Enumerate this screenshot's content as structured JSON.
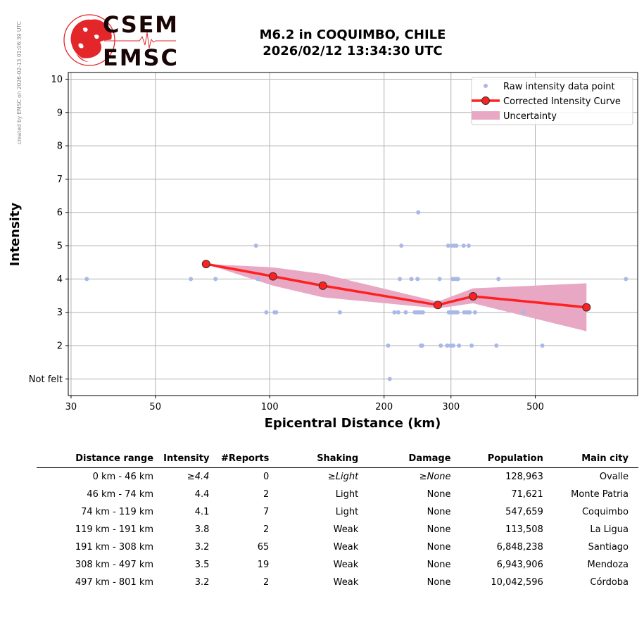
{
  "watermark": "created by EMSC on 2026-02-13 01:06:39 UTC",
  "logo": {
    "top": "CSEM",
    "bottom": "EMSC"
  },
  "title": {
    "line1": "M6.2 in COQUIMBO, CHILE",
    "line2": "2026/02/12 13:34:30 UTC"
  },
  "colors": {
    "raw": "#aab8e8",
    "curve": "#ff2020",
    "uncertainty": "#e8a8c4",
    "logo_red": "#e3262a",
    "logo_dark": "#2a0a0a"
  },
  "chart_data": {
    "type": "scatter",
    "x_scale": "log",
    "xlabel": "Epicentral Distance (km)",
    "ylabel": "Intensity",
    "xlim": [
      29.5,
      930
    ],
    "ylim": [
      0.5,
      10.2
    ],
    "x_ticks": [
      30,
      50,
      100,
      200,
      300,
      500
    ],
    "y_ticks": [
      {
        "v": 1,
        "label": "Not felt"
      },
      {
        "v": 2,
        "label": "2"
      },
      {
        "v": 3,
        "label": "3"
      },
      {
        "v": 4,
        "label": "4"
      },
      {
        "v": 5,
        "label": "5"
      },
      {
        "v": 6,
        "label": "6"
      },
      {
        "v": 7,
        "label": "7"
      },
      {
        "v": 8,
        "label": "8"
      },
      {
        "v": 9,
        "label": "9"
      },
      {
        "v": 10,
        "label": "10"
      }
    ],
    "grid": true,
    "legend_position": "top-right",
    "legend": [
      "Raw intensity data point",
      "Corrected Intensity Curve",
      "Uncertainty"
    ],
    "raw_points": [
      [
        33,
        4
      ],
      [
        62,
        4
      ],
      [
        72,
        4
      ],
      [
        92,
        5
      ],
      [
        93,
        4
      ],
      [
        98,
        3
      ],
      [
        103,
        3
      ],
      [
        104,
        3
      ],
      [
        153,
        3
      ],
      [
        205,
        2
      ],
      [
        207,
        1
      ],
      [
        213,
        3
      ],
      [
        218,
        3
      ],
      [
        220,
        4
      ],
      [
        222,
        5
      ],
      [
        228,
        3
      ],
      [
        236,
        4
      ],
      [
        241,
        3
      ],
      [
        244,
        3
      ],
      [
        246,
        6
      ],
      [
        245,
        4
      ],
      [
        247,
        3
      ],
      [
        249,
        3
      ],
      [
        250,
        2
      ],
      [
        252,
        2
      ],
      [
        253,
        3
      ],
      [
        280,
        4
      ],
      [
        282,
        2
      ],
      [
        293,
        2
      ],
      [
        295,
        5
      ],
      [
        296,
        3
      ],
      [
        298,
        3
      ],
      [
        299,
        2
      ],
      [
        301,
        5
      ],
      [
        302,
        3
      ],
      [
        303,
        4
      ],
      [
        304,
        2
      ],
      [
        305,
        3
      ],
      [
        306,
        5
      ],
      [
        307,
        4
      ],
      [
        309,
        3
      ],
      [
        310,
        5
      ],
      [
        311,
        4
      ],
      [
        312,
        3
      ],
      [
        313,
        4
      ],
      [
        315,
        2
      ],
      [
        324,
        5
      ],
      [
        325,
        3
      ],
      [
        330,
        3
      ],
      [
        333,
        3
      ],
      [
        334,
        5
      ],
      [
        336,
        3
      ],
      [
        340,
        2
      ],
      [
        347,
        3
      ],
      [
        395,
        2
      ],
      [
        400,
        4
      ],
      [
        465,
        3
      ],
      [
        522,
        2
      ],
      [
        866,
        4
      ]
    ],
    "curve": {
      "name": "Corrected Intensity Curve",
      "x": [
        68,
        102,
        138,
        277,
        343,
        682
      ],
      "y": [
        4.45,
        4.08,
        3.8,
        3.22,
        3.48,
        3.15
      ]
    },
    "uncertainty": {
      "x": [
        68,
        102,
        138,
        277,
        343,
        682
      ],
      "upper": [
        4.45,
        4.35,
        4.15,
        3.32,
        3.72,
        3.87
      ],
      "lower": [
        4.45,
        3.8,
        3.45,
        3.12,
        3.27,
        2.43
      ]
    }
  },
  "table": {
    "headers": [
      "Distance range",
      "Intensity",
      "#Reports",
      "Shaking",
      "Damage",
      "Population",
      "Main city"
    ],
    "rows": [
      [
        "0 km -   46 km",
        "≥4.4",
        "0",
        "≥Light",
        "≥None",
        "128,963",
        "Ovalle"
      ],
      [
        "46 km -   74 km",
        "4.4",
        "2",
        "Light",
        "None",
        "71,621",
        "Monte Patria"
      ],
      [
        "74 km -  119 km",
        "4.1",
        "7",
        "Light",
        "None",
        "547,659",
        "Coquimbo"
      ],
      [
        "119 km -  191 km",
        "3.8",
        "2",
        "Weak",
        "None",
        "113,508",
        "La Ligua"
      ],
      [
        "191 km -  308 km",
        "3.2",
        "65",
        "Weak",
        "None",
        "6,848,238",
        "Santiago"
      ],
      [
        "308 km -  497 km",
        "3.5",
        "19",
        "Weak",
        "None",
        "6,943,906",
        "Mendoza"
      ],
      [
        "497 km -  801 km",
        "3.2",
        "2",
        "Weak",
        "None",
        "10,042,596",
        "Córdoba"
      ]
    ]
  }
}
